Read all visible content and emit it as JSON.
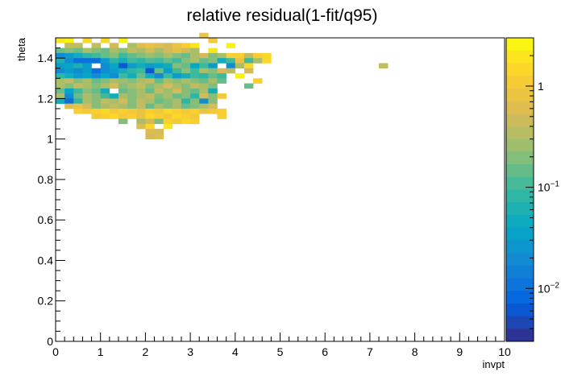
{
  "chart_data": {
    "type": "heatmap",
    "title": "relative residual(1-fit/q95)",
    "xlabel": "invpt",
    "ylabel": "theta",
    "xlim": [
      0,
      10
    ],
    "ylim": [
      0,
      1.5
    ],
    "x_ticks": [
      0,
      1,
      2,
      3,
      4,
      5,
      6,
      7,
      8,
      9,
      10
    ],
    "x_tick_labels": [
      "0",
      "1",
      "2",
      "3",
      "4",
      "5",
      "6",
      "7",
      "8",
      "9",
      "10"
    ],
    "y_ticks": [
      0,
      0.2,
      0.4,
      0.6,
      0.8,
      1.0,
      1.2,
      1.4
    ],
    "y_tick_labels": [
      "0",
      "0.2",
      "0.4",
      "0.6",
      "0.8",
      "1",
      "1.2",
      "1.4"
    ],
    "color_scale": "log",
    "color_range": [
      0.003,
      3.0
    ],
    "palette": [
      "#352a87",
      "#0363e1",
      "#1485d4",
      "#06a7c6",
      "#38b99e",
      "#92bf73",
      "#d9ba56",
      "#fcce2e",
      "#f9fb0e"
    ],
    "colorbar_ticks": [
      0.01,
      0.1,
      1
    ],
    "colorbar_tick_labels": [
      "10^-2",
      "10^-1",
      "1"
    ],
    "bin_width_x": 0.2,
    "bin_width_y": 0.025,
    "bins": [
      [
        0.0,
        1.475,
        2.0
      ],
      [
        0.2,
        1.475,
        2.5
      ],
      [
        0.6,
        1.475,
        1.5
      ],
      [
        1.0,
        1.475,
        1.5
      ],
      [
        1.4,
        1.475,
        2.5
      ],
      [
        3.4,
        1.475,
        1.0
      ],
      [
        3.2,
        1.5,
        0.9
      ],
      [
        0.2,
        1.45,
        0.4
      ],
      [
        0.4,
        1.45,
        0.4
      ],
      [
        0.8,
        1.45,
        0.4
      ],
      [
        1.2,
        1.45,
        0.5
      ],
      [
        1.6,
        1.45,
        0.3
      ],
      [
        1.8,
        1.45,
        0.6
      ],
      [
        2.0,
        1.45,
        0.8
      ],
      [
        2.2,
        1.45,
        0.6
      ],
      [
        2.4,
        1.45,
        0.5
      ],
      [
        2.6,
        1.45,
        0.8
      ],
      [
        2.8,
        1.45,
        1.2
      ],
      [
        3.0,
        1.45,
        2.0
      ],
      [
        3.8,
        1.45,
        2.5
      ],
      [
        0.0,
        1.425,
        0.15
      ],
      [
        0.2,
        1.425,
        0.2
      ],
      [
        0.4,
        1.425,
        0.15
      ],
      [
        0.6,
        1.425,
        0.3
      ],
      [
        0.8,
        1.425,
        0.2
      ],
      [
        1.0,
        1.425,
        0.15
      ],
      [
        1.2,
        1.425,
        0.3
      ],
      [
        1.4,
        1.425,
        0.2
      ],
      [
        1.6,
        1.425,
        0.4
      ],
      [
        1.8,
        1.425,
        0.3
      ],
      [
        2.0,
        1.425,
        0.5
      ],
      [
        2.2,
        1.425,
        0.3
      ],
      [
        2.4,
        1.425,
        0.5
      ],
      [
        2.6,
        1.425,
        0.7
      ],
      [
        2.8,
        1.425,
        0.5
      ],
      [
        3.0,
        1.425,
        0.3
      ],
      [
        3.4,
        1.425,
        2.0
      ],
      [
        0.0,
        1.4,
        0.02
      ],
      [
        0.2,
        1.4,
        0.03
      ],
      [
        0.4,
        1.4,
        0.05
      ],
      [
        0.6,
        1.4,
        0.08
      ],
      [
        0.8,
        1.4,
        0.1
      ],
      [
        1.0,
        1.4,
        0.15
      ],
      [
        1.2,
        1.4,
        0.2
      ],
      [
        1.4,
        1.4,
        0.1
      ],
      [
        1.6,
        1.4,
        0.15
      ],
      [
        1.8,
        1.4,
        0.2
      ],
      [
        2.0,
        1.4,
        0.25
      ],
      [
        2.2,
        1.4,
        0.2
      ],
      [
        2.4,
        1.4,
        0.3
      ],
      [
        2.6,
        1.4,
        0.2
      ],
      [
        2.8,
        1.4,
        0.15
      ],
      [
        3.0,
        1.4,
        0.3
      ],
      [
        3.2,
        1.4,
        0.5
      ],
      [
        3.4,
        1.4,
        0.2
      ],
      [
        3.6,
        1.4,
        0.3
      ],
      [
        3.8,
        1.4,
        1.2
      ],
      [
        4.0,
        1.4,
        1.2
      ],
      [
        4.2,
        1.4,
        0.4
      ],
      [
        4.4,
        1.4,
        1.2
      ],
      [
        4.6,
        1.4,
        1.5
      ],
      [
        0.0,
        1.375,
        0.06
      ],
      [
        0.2,
        1.375,
        0.02
      ],
      [
        0.4,
        1.375,
        0.01
      ],
      [
        0.6,
        1.375,
        0.01
      ],
      [
        0.8,
        1.375,
        0.01
      ],
      [
        1.0,
        1.375,
        0.03
      ],
      [
        1.2,
        1.375,
        0.08
      ],
      [
        1.4,
        1.375,
        0.05
      ],
      [
        1.6,
        1.375,
        0.1
      ],
      [
        1.8,
        1.375,
        0.08
      ],
      [
        2.0,
        1.375,
        0.12
      ],
      [
        2.2,
        1.375,
        0.1
      ],
      [
        2.4,
        1.375,
        0.15
      ],
      [
        2.6,
        1.375,
        0.1
      ],
      [
        2.8,
        1.375,
        0.2
      ],
      [
        3.0,
        1.375,
        0.3
      ],
      [
        3.2,
        1.375,
        0.15
      ],
      [
        3.4,
        1.375,
        0.2
      ],
      [
        3.6,
        1.375,
        0.05
      ],
      [
        3.8,
        1.375,
        0.1
      ],
      [
        4.0,
        1.375,
        0.8
      ],
      [
        4.2,
        1.375,
        0.1
      ],
      [
        4.4,
        1.375,
        0.3
      ],
      [
        4.6,
        1.375,
        1.5
      ],
      [
        0.0,
        1.35,
        0.03
      ],
      [
        0.2,
        1.35,
        0.04
      ],
      [
        0.4,
        1.35,
        0.06
      ],
      [
        0.6,
        1.35,
        0.03
      ],
      [
        1.0,
        1.35,
        0.02
      ],
      [
        1.2,
        1.35,
        0.04
      ],
      [
        1.4,
        1.35,
        0.006
      ],
      [
        1.6,
        1.35,
        0.03
      ],
      [
        1.8,
        1.35,
        0.05
      ],
      [
        2.0,
        1.35,
        0.03
      ],
      [
        2.2,
        1.35,
        0.04
      ],
      [
        2.4,
        1.35,
        0.05
      ],
      [
        2.6,
        1.35,
        0.2
      ],
      [
        2.8,
        1.35,
        0.15
      ],
      [
        3.0,
        1.35,
        0.04
      ],
      [
        3.2,
        1.35,
        0.1
      ],
      [
        3.4,
        1.35,
        0.03
      ],
      [
        3.8,
        1.35,
        0.02
      ],
      [
        4.0,
        1.35,
        0.3
      ],
      [
        4.2,
        1.35,
        1.5
      ],
      [
        7.2,
        1.35,
        0.4
      ],
      [
        0.0,
        1.325,
        0.02
      ],
      [
        0.2,
        1.325,
        0.03
      ],
      [
        0.4,
        1.325,
        0.02
      ],
      [
        0.6,
        1.325,
        0.03
      ],
      [
        0.8,
        1.325,
        0.01
      ],
      [
        1.0,
        1.325,
        0.02
      ],
      [
        1.2,
        1.325,
        0.03
      ],
      [
        1.4,
        1.325,
        0.05
      ],
      [
        1.6,
        1.325,
        0.08
      ],
      [
        1.8,
        1.325,
        0.1
      ],
      [
        2.0,
        1.325,
        0.006
      ],
      [
        2.2,
        1.325,
        0.15
      ],
      [
        2.4,
        1.325,
        0.03
      ],
      [
        2.6,
        1.325,
        0.1
      ],
      [
        2.8,
        1.325,
        0.2
      ],
      [
        3.0,
        1.325,
        0.1
      ],
      [
        3.2,
        1.325,
        0.3
      ],
      [
        3.4,
        1.325,
        0.2
      ],
      [
        3.6,
        1.325,
        0.5
      ],
      [
        3.8,
        1.325,
        0.4
      ],
      [
        4.2,
        1.325,
        0.5
      ],
      [
        0.0,
        1.3,
        0.08
      ],
      [
        0.2,
        1.3,
        0.05
      ],
      [
        0.4,
        1.3,
        0.03
      ],
      [
        0.6,
        1.3,
        0.04
      ],
      [
        0.8,
        1.3,
        0.02
      ],
      [
        1.0,
        1.3,
        0.04
      ],
      [
        1.2,
        1.3,
        0.02
      ],
      [
        1.4,
        1.3,
        0.1
      ],
      [
        1.6,
        1.3,
        0.05
      ],
      [
        1.8,
        1.3,
        0.15
      ],
      [
        2.0,
        1.3,
        0.05
      ],
      [
        2.2,
        1.3,
        0.02
      ],
      [
        2.4,
        1.3,
        0.1
      ],
      [
        2.6,
        1.3,
        0.03
      ],
      [
        2.8,
        1.3,
        0.05
      ],
      [
        3.0,
        1.3,
        0.1
      ],
      [
        3.2,
        1.3,
        0.08
      ],
      [
        3.4,
        1.3,
        0.15
      ],
      [
        3.6,
        1.3,
        0.1
      ],
      [
        4.0,
        1.3,
        2.5
      ],
      [
        0.0,
        1.275,
        0.3
      ],
      [
        0.2,
        1.275,
        0.4
      ],
      [
        0.4,
        1.275,
        0.2
      ],
      [
        0.6,
        1.275,
        0.3
      ],
      [
        0.8,
        1.275,
        0.15
      ],
      [
        1.0,
        1.275,
        0.2
      ],
      [
        1.2,
        1.275,
        0.3
      ],
      [
        1.4,
        1.275,
        0.25
      ],
      [
        1.6,
        1.275,
        0.2
      ],
      [
        1.8,
        1.275,
        0.3
      ],
      [
        2.0,
        1.275,
        0.4
      ],
      [
        2.2,
        1.275,
        0.15
      ],
      [
        2.4,
        1.275,
        0.3
      ],
      [
        2.6,
        1.275,
        0.2
      ],
      [
        2.8,
        1.275,
        0.3
      ],
      [
        3.0,
        1.275,
        0.2
      ],
      [
        3.2,
        1.275,
        0.15
      ],
      [
        3.4,
        1.275,
        0.3
      ],
      [
        3.6,
        1.275,
        0.15
      ],
      [
        4.4,
        1.275,
        1.2
      ],
      [
        0.0,
        1.25,
        0.3
      ],
      [
        0.2,
        1.25,
        0.2
      ],
      [
        0.4,
        1.25,
        0.4
      ],
      [
        0.6,
        1.25,
        0.3
      ],
      [
        0.8,
        1.25,
        0.2
      ],
      [
        1.0,
        1.25,
        0.3
      ],
      [
        1.2,
        1.25,
        0.5
      ],
      [
        1.4,
        1.25,
        0.2
      ],
      [
        1.6,
        1.25,
        0.3
      ],
      [
        1.8,
        1.25,
        0.4
      ],
      [
        2.0,
        1.25,
        0.2
      ],
      [
        2.2,
        1.25,
        0.3
      ],
      [
        2.4,
        1.25,
        0.5
      ],
      [
        2.6,
        1.25,
        0.3
      ],
      [
        2.8,
        1.25,
        0.2
      ],
      [
        3.0,
        1.25,
        0.4
      ],
      [
        3.2,
        1.25,
        0.3
      ],
      [
        3.4,
        1.25,
        0.2
      ],
      [
        4.2,
        1.25,
        0.15
      ],
      [
        0.0,
        1.225,
        0.15
      ],
      [
        0.2,
        1.225,
        0.04
      ],
      [
        0.4,
        1.225,
        0.1
      ],
      [
        0.6,
        1.225,
        0.2
      ],
      [
        0.8,
        1.225,
        0.15
      ],
      [
        1.0,
        1.225,
        0.05
      ],
      [
        1.4,
        1.225,
        0.15
      ],
      [
        1.6,
        1.225,
        0.2
      ],
      [
        1.8,
        1.225,
        0.3
      ],
      [
        2.0,
        1.225,
        0.15
      ],
      [
        2.2,
        1.225,
        0.4
      ],
      [
        2.4,
        1.225,
        0.25
      ],
      [
        2.6,
        1.225,
        0.5
      ],
      [
        2.8,
        1.225,
        0.2
      ],
      [
        3.0,
        1.225,
        0.15
      ],
      [
        3.2,
        1.225,
        0.3
      ],
      [
        3.4,
        1.225,
        0.05
      ],
      [
        0.0,
        1.2,
        0.3
      ],
      [
        0.2,
        1.2,
        0.02
      ],
      [
        0.4,
        1.2,
        0.15
      ],
      [
        0.6,
        1.2,
        0.3
      ],
      [
        0.8,
        1.2,
        0.2
      ],
      [
        1.0,
        1.2,
        0.1
      ],
      [
        1.2,
        1.2,
        0.05
      ],
      [
        1.4,
        1.2,
        0.3
      ],
      [
        1.6,
        1.2,
        0.2
      ],
      [
        1.8,
        1.2,
        0.3
      ],
      [
        2.0,
        1.2,
        0.4
      ],
      [
        2.2,
        1.2,
        0.2
      ],
      [
        2.4,
        1.2,
        0.3
      ],
      [
        2.6,
        1.2,
        0.15
      ],
      [
        2.8,
        1.2,
        0.2
      ],
      [
        3.0,
        1.2,
        0.08
      ],
      [
        3.2,
        1.2,
        0.5
      ],
      [
        3.4,
        1.2,
        0.2
      ],
      [
        3.6,
        1.2,
        1.0
      ],
      [
        0.0,
        1.175,
        0.05
      ],
      [
        0.2,
        1.175,
        0.01
      ],
      [
        0.4,
        1.175,
        0.08
      ],
      [
        0.6,
        1.175,
        0.3
      ],
      [
        0.8,
        1.175,
        0.2
      ],
      [
        1.0,
        1.175,
        0.4
      ],
      [
        1.2,
        1.175,
        0.3
      ],
      [
        1.4,
        1.175,
        0.5
      ],
      [
        1.6,
        1.175,
        0.2
      ],
      [
        1.8,
        1.175,
        0.4
      ],
      [
        2.0,
        1.175,
        0.3
      ],
      [
        2.2,
        1.175,
        0.15
      ],
      [
        2.4,
        1.175,
        0.2
      ],
      [
        2.6,
        1.175,
        0.3
      ],
      [
        2.8,
        1.175,
        0.08
      ],
      [
        3.0,
        1.175,
        0.2
      ],
      [
        3.2,
        1.175,
        0.02
      ],
      [
        3.4,
        1.175,
        0.2
      ],
      [
        0.2,
        1.15,
        0.6
      ],
      [
        0.4,
        1.15,
        0.8
      ],
      [
        0.6,
        1.15,
        0.5
      ],
      [
        0.8,
        1.15,
        0.2
      ],
      [
        1.0,
        1.15,
        0.3
      ],
      [
        1.2,
        1.15,
        0.4
      ],
      [
        1.4,
        1.15,
        0.3
      ],
      [
        1.6,
        1.15,
        0.2
      ],
      [
        1.8,
        1.15,
        0.4
      ],
      [
        2.0,
        1.15,
        0.15
      ],
      [
        2.2,
        1.15,
        0.3
      ],
      [
        2.4,
        1.15,
        0.2
      ],
      [
        2.6,
        1.15,
        0.3
      ],
      [
        2.8,
        1.15,
        0.15
      ],
      [
        3.0,
        1.15,
        0.2
      ],
      [
        3.2,
        1.15,
        0.3
      ],
      [
        3.4,
        1.15,
        0.5
      ],
      [
        0.4,
        1.125,
        1.2
      ],
      [
        0.6,
        1.125,
        1.0
      ],
      [
        0.8,
        1.125,
        1.2
      ],
      [
        1.0,
        1.125,
        1.5
      ],
      [
        1.2,
        1.125,
        1.0
      ],
      [
        1.4,
        1.125,
        1.2
      ],
      [
        1.6,
        1.125,
        1.0
      ],
      [
        1.8,
        1.125,
        0.8
      ],
      [
        2.0,
        1.125,
        1.2
      ],
      [
        2.2,
        1.125,
        1.0
      ],
      [
        2.4,
        1.125,
        1.5
      ],
      [
        2.6,
        1.125,
        1.2
      ],
      [
        2.8,
        1.125,
        1.0
      ],
      [
        3.0,
        1.125,
        1.2
      ],
      [
        3.2,
        1.125,
        0.8
      ],
      [
        3.4,
        1.125,
        1.0
      ],
      [
        3.6,
        1.125,
        1.2
      ],
      [
        0.8,
        1.1,
        1.0
      ],
      [
        1.0,
        1.1,
        1.2
      ],
      [
        1.2,
        1.1,
        1.5
      ],
      [
        1.4,
        1.1,
        1.0
      ],
      [
        1.6,
        1.1,
        1.2
      ],
      [
        1.8,
        1.1,
        0.8
      ],
      [
        2.0,
        1.1,
        1.5
      ],
      [
        2.2,
        1.1,
        1.2
      ],
      [
        2.4,
        1.1,
        1.0
      ],
      [
        2.6,
        1.1,
        1.5
      ],
      [
        2.8,
        1.1,
        1.2
      ],
      [
        3.0,
        1.1,
        1.0
      ],
      [
        3.6,
        1.1,
        1.2
      ],
      [
        1.4,
        1.075,
        0.2
      ],
      [
        1.8,
        1.075,
        0.3
      ],
      [
        2.0,
        1.075,
        0.5
      ],
      [
        2.2,
        1.075,
        0.2
      ],
      [
        2.4,
        1.075,
        1.2
      ],
      [
        2.6,
        1.075,
        1.0
      ],
      [
        2.8,
        1.075,
        1.5
      ],
      [
        3.0,
        1.075,
        1.2
      ],
      [
        1.8,
        1.05,
        0.6
      ],
      [
        2.0,
        1.05,
        1.5
      ],
      [
        2.4,
        1.05,
        2.0
      ],
      [
        2.0,
        1.025,
        0.6
      ],
      [
        2.2,
        1.025,
        0.5
      ],
      [
        2.0,
        1.0,
        0.5
      ],
      [
        2.2,
        1.0,
        0.6
      ]
    ]
  }
}
